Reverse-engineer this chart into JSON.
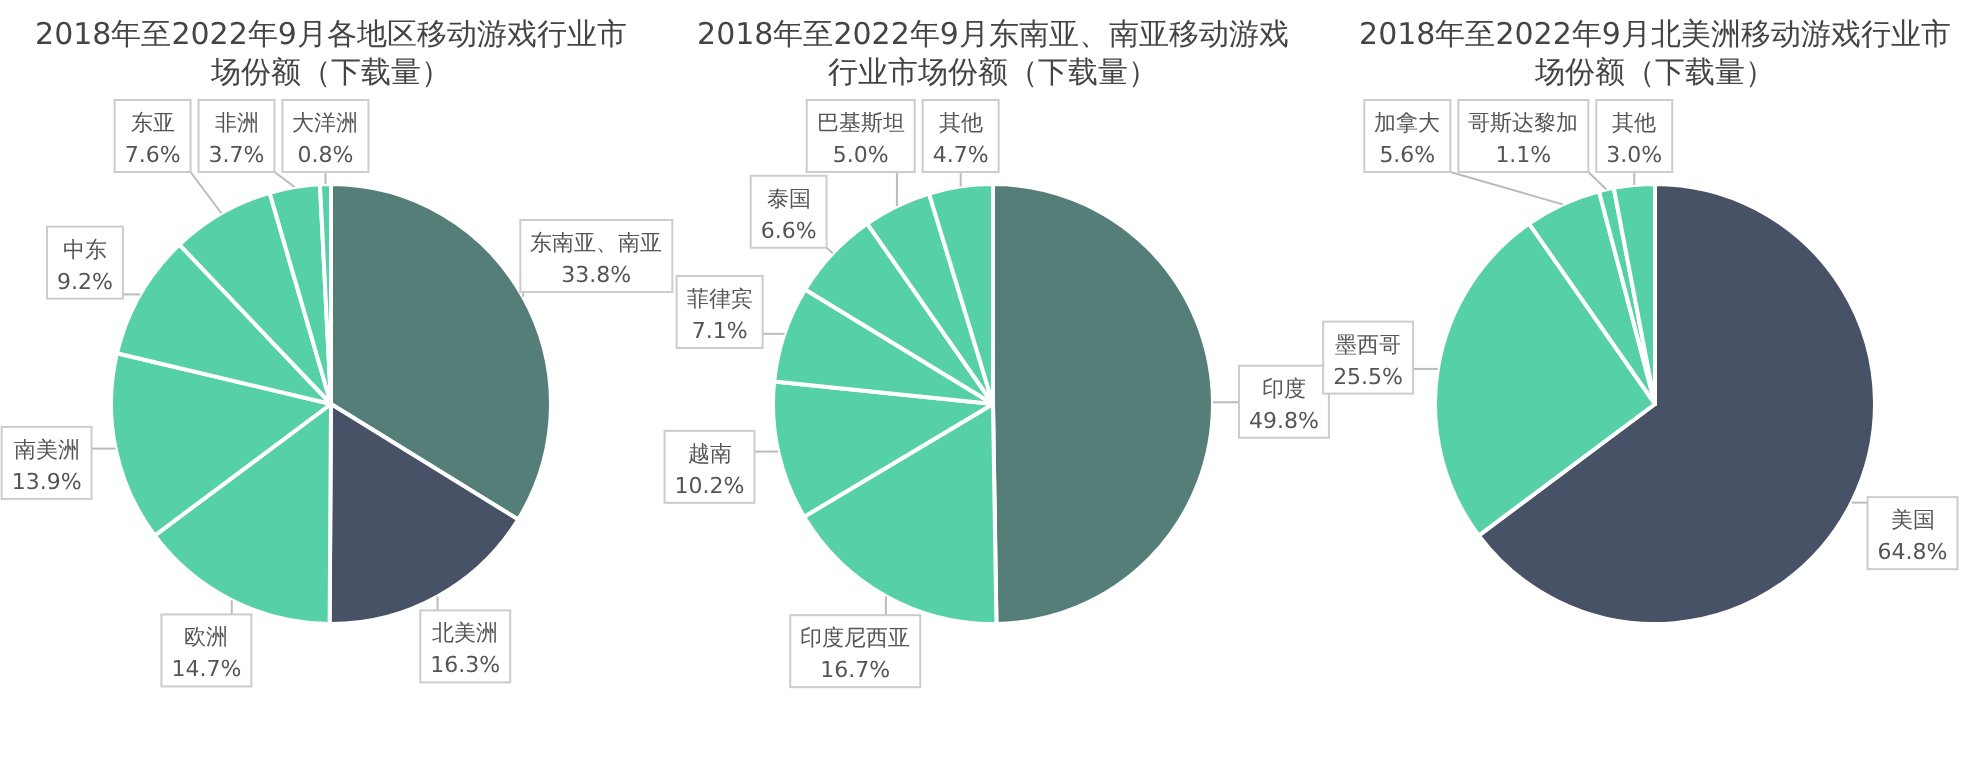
{
  "chart_data": [
    {
      "type": "pie",
      "title": "2018年至2022年9月各地区移动游戏行业市场份额（下载量）",
      "categories": [
        "东南亚、南亚",
        "北美洲",
        "欧洲",
        "南美洲",
        "中东",
        "东亚",
        "非洲",
        "大洋洲"
      ],
      "values": [
        33.8,
        16.3,
        14.7,
        13.9,
        9.2,
        7.6,
        3.7,
        0.8
      ],
      "value_labels": [
        "33.8%",
        "16.3%",
        "14.7%",
        "13.9%",
        "9.2%",
        "7.6%",
        "3.7%",
        "0.8%"
      ],
      "colors": [
        "#557e79",
        "#485266",
        "#55d0a7",
        "#55d0a7",
        "#55d0a7",
        "#55d0a7",
        "#55d0a7",
        "#55d0a7"
      ]
    },
    {
      "type": "pie",
      "title": "2018年至2022年9月东南亚、南亚移动游戏行业市场份额（下载量）",
      "categories": [
        "印度",
        "印度尼西亚",
        "越南",
        "菲律宾",
        "泰国",
        "巴基斯坦",
        "其他"
      ],
      "values": [
        49.8,
        16.7,
        10.2,
        7.1,
        6.6,
        5.0,
        4.7
      ],
      "value_labels": [
        "49.8%",
        "16.7%",
        "10.2%",
        "7.1%",
        "6.6%",
        "5.0%",
        "4.7%"
      ],
      "colors": [
        "#557e79",
        "#55d0a7",
        "#55d0a7",
        "#55d0a7",
        "#55d0a7",
        "#55d0a7",
        "#55d0a7"
      ]
    },
    {
      "type": "pie",
      "title": "2018年至2022年9月北美洲移动游戏行业市场份额（下载量）",
      "categories": [
        "美国",
        "墨西哥",
        "加拿大",
        "哥斯达黎加",
        "其他"
      ],
      "values": [
        64.8,
        25.5,
        5.6,
        1.1,
        3.0
      ],
      "value_labels": [
        "64.8%",
        "25.5%",
        "5.6%",
        "1.1%",
        "3.0%"
      ],
      "colors": [
        "#485266",
        "#55d0a7",
        "#55d0a7",
        "#55d0a7",
        "#55d0a7"
      ]
    }
  ]
}
